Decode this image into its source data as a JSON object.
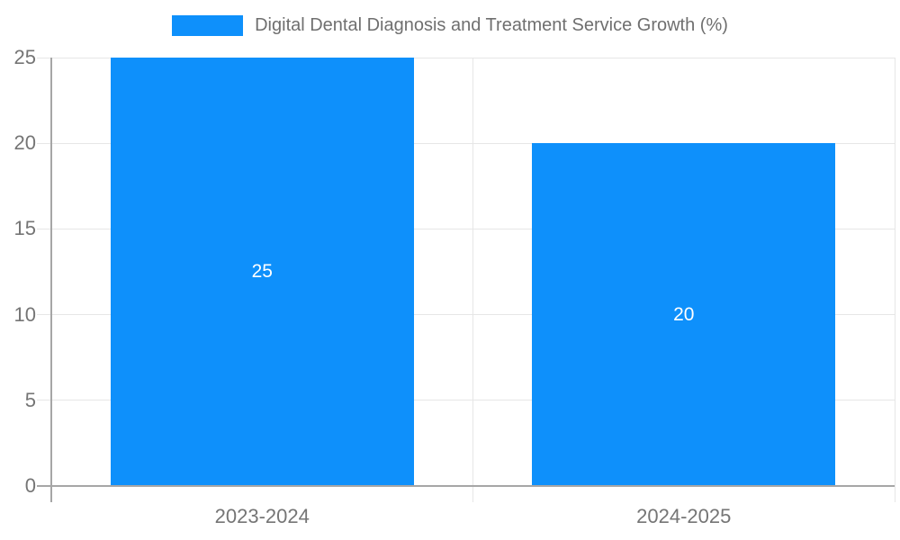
{
  "chart_data": {
    "type": "bar",
    "title": "Digital Dental Diagnosis and Treatment Service Growth (%)",
    "categories": [
      "2023-2024",
      "2024-2025"
    ],
    "values": [
      25,
      20
    ],
    "bar_labels": [
      "25",
      "20"
    ],
    "xlabel": "",
    "ylabel": "",
    "ylim": [
      0,
      25
    ],
    "yticks": [
      0,
      5,
      10,
      15,
      20,
      25
    ],
    "grid": true,
    "legend_position": "top-center",
    "bar_label_position": "inside-center",
    "colors": {
      "bar": "#0E90FB",
      "grid": "#e6e6e6",
      "axis": "#a6a6a6",
      "tick_text": "#757575",
      "legend_text": "#6f6f6f",
      "bar_label_text": "#ffffff",
      "background": "#ffffff"
    }
  },
  "legend": {
    "items": [
      {
        "label": "Digital Dental Diagnosis and Treatment Service Growth (%)",
        "swatch_color": "#0E90FB"
      }
    ]
  }
}
